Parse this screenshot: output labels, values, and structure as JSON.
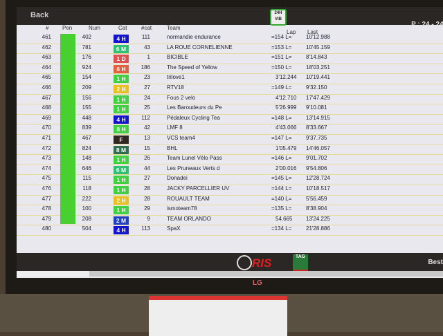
{
  "header": {
    "back_label": "Back",
    "logo_text": "24H VIB",
    "period": "P : 24 - 24:"
  },
  "columns": {
    "pos": "#",
    "pen": "Pen",
    "num": "Num",
    "cat": "Cat",
    "catpos": "#cat",
    "team": "Team",
    "lap": "Lap",
    "last": "Last"
  },
  "cat_colors": {
    "4 H": "#1414d0",
    "6 M": "#30c070",
    "1 D": "#e05050",
    "6 H": "#e06040",
    "1 H": "#40d040",
    "2 H": "#e8c020",
    "F": "#302820",
    "8 H": "#40d040",
    "8 M": "#2f6f50",
    "2 M": "#2040c0"
  },
  "pen_color": "#48d030",
  "rows": [
    {
      "pos": "461",
      "num": "402",
      "cat": "4 H",
      "catpos": "111",
      "team": "normandie endurance",
      "lap": "=154 L=",
      "last": "10'12.988"
    },
    {
      "pos": "462",
      "num": "781",
      "cat": "6 M",
      "catpos": "43",
      "team": "LA ROUE CORNELIENNE",
      "lap": "=153 L=",
      "last": "10'45.159"
    },
    {
      "pos": "463",
      "num": "176",
      "cat": "1 D",
      "catpos": "1",
      "team": "BICIBLE",
      "lap": "=151 L=",
      "last": "8'14.843"
    },
    {
      "pos": "464",
      "num": "924",
      "cat": "6 H",
      "catpos": "186",
      "team": "The Speed of Yellow",
      "lap": "=150 L=",
      "last": "18'03.251"
    },
    {
      "pos": "465",
      "num": "154",
      "cat": "1 H",
      "catpos": "23",
      "team": "trilove1",
      "lap": "3'12.244",
      "last": "10'19.441"
    },
    {
      "pos": "466",
      "num": "209",
      "cat": "2 H",
      "catpos": "27",
      "team": "RTV18",
      "lap": "=149 L=",
      "last": "9'32.150"
    },
    {
      "pos": "467",
      "num": "156",
      "cat": "1 H",
      "catpos": "24",
      "team": "Fous 2 velo",
      "lap": "4'12.710",
      "last": "17'47.429"
    },
    {
      "pos": "468",
      "num": "155",
      "cat": "1 H",
      "catpos": "25",
      "team": "Les Baroudeurs du Pe",
      "lap": "5'26.999",
      "last": "9'10.081"
    },
    {
      "pos": "469",
      "num": "448",
      "cat": "4 H",
      "catpos": "112",
      "team": "Pédaleux Cycling Tea",
      "lap": "=148 L=",
      "last": "13'14.915"
    },
    {
      "pos": "470",
      "num": "839",
      "cat": "8 H",
      "catpos": "42",
      "team": "LMF 8",
      "lap": "4'43.066",
      "last": "8'33.667"
    },
    {
      "pos": "471",
      "num": "467",
      "cat": "F",
      "catpos": "13",
      "team": "VCS team4",
      "lap": "=147 L=",
      "last": "9'37.735"
    },
    {
      "pos": "472",
      "num": "824",
      "cat": "8 M",
      "catpos": "15",
      "team": "BHL",
      "lap": "1'05.479",
      "last": "14'46.057"
    },
    {
      "pos": "473",
      "num": "148",
      "cat": "1 H",
      "catpos": "26",
      "team": "Team Lunel Vélo Pass",
      "lap": "=146 L=",
      "last": "9'01.702"
    },
    {
      "pos": "474",
      "num": "646",
      "cat": "6 M",
      "catpos": "44",
      "team": "Les Pruneaux Verts d",
      "lap": "2'00.016",
      "last": "9'54.806"
    },
    {
      "pos": "475",
      "num": "115",
      "cat": "1 H",
      "catpos": "27",
      "team": "Donadei",
      "lap": "=145 L=",
      "last": "12'28.724"
    },
    {
      "pos": "476",
      "num": "118",
      "cat": "1 H",
      "catpos": "28",
      "team": "JACKY PARCELLIER UV",
      "lap": "=144 L=",
      "last": "10'18.517"
    },
    {
      "pos": "477",
      "num": "222",
      "cat": "2 H",
      "catpos": "28",
      "team": "ROUAULT TEAM",
      "lap": "=140 L=",
      "last": "5'56.459"
    },
    {
      "pos": "478",
      "num": "100",
      "cat": "1 H",
      "catpos": "29",
      "team": "ismoteam78",
      "lap": "=135 L=",
      "last": "8'38.904"
    },
    {
      "pos": "479",
      "num": "208",
      "cat": "2 M",
      "catpos": "9",
      "team": "TEAM ORLANDO",
      "lap": "54.665",
      "last": "13'24.225"
    },
    {
      "pos": "480",
      "num": "504",
      "cat": "4 H",
      "catpos": "113",
      "team": "SpaX",
      "lap": "=134 L=",
      "last": "21'28.886"
    }
  ],
  "footer": {
    "ris_logo": "RIS",
    "tag_logo": "TAG HEUER",
    "best_label": "Best"
  },
  "monitor_brand": "LG"
}
